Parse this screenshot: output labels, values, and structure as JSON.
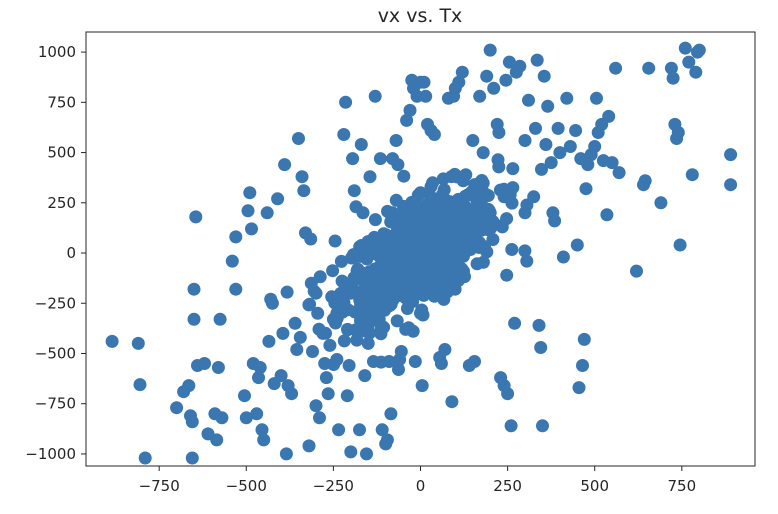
{
  "chart_data": {
    "type": "scatter",
    "title": "vx vs. Tx",
    "xlabel": "",
    "ylabel": "",
    "xlim": [
      -960,
      960
    ],
    "ylim": [
      -1060,
      1100
    ],
    "xticks": [
      -750,
      -500,
      -250,
      0,
      250,
      500,
      750
    ],
    "xtick_labels": [
      "−750",
      "−500",
      "−250",
      "0",
      "250",
      "500",
      "750"
    ],
    "yticks": [
      -1000,
      -750,
      -500,
      -250,
      0,
      250,
      500,
      750,
      1000
    ],
    "ytick_labels": [
      "−1000",
      "−750",
      "−500",
      "−250",
      "0",
      "250",
      "500",
      "750",
      "1000"
    ],
    "grid": false,
    "marker_color": "#3a76b0",
    "points_note": "approximately 1000 points; dense cluster around origin, positively correlated",
    "series": [
      {
        "values": [
          [
            -885,
            -440
          ],
          [
            -810,
            -450
          ],
          [
            -805,
            -655
          ],
          [
            -790,
            -1020
          ],
          [
            -700,
            -770
          ],
          [
            -680,
            -690
          ],
          [
            -665,
            -660
          ],
          [
            -660,
            -810
          ],
          [
            -655,
            -840
          ],
          [
            -655,
            -1020
          ],
          [
            -650,
            -330
          ],
          [
            -650,
            -180
          ],
          [
            -645,
            180
          ],
          [
            -640,
            -560
          ],
          [
            -620,
            -550
          ],
          [
            -610,
            -900
          ],
          [
            -590,
            -800
          ],
          [
            -585,
            -930
          ],
          [
            -580,
            -570
          ],
          [
            -575,
            -330
          ],
          [
            -570,
            -820
          ],
          [
            -540,
            -40
          ],
          [
            -530,
            -180
          ],
          [
            -530,
            80
          ],
          [
            -505,
            -710
          ],
          [
            -500,
            -820
          ],
          [
            -495,
            210
          ],
          [
            -490,
            300
          ],
          [
            -485,
            120
          ],
          [
            -480,
            -550
          ],
          [
            -470,
            -800
          ],
          [
            -465,
            -620
          ],
          [
            -460,
            -570
          ],
          [
            -455,
            -880
          ],
          [
            -450,
            -930
          ],
          [
            -440,
            200
          ],
          [
            -435,
            -440
          ],
          [
            -430,
            -230
          ],
          [
            -425,
            -250
          ],
          [
            -420,
            -650
          ],
          [
            -410,
            270
          ],
          [
            -400,
            -610
          ],
          [
            -395,
            -400
          ],
          [
            -390,
            440
          ],
          [
            -385,
            -1000
          ],
          [
            -380,
            -660
          ],
          [
            -370,
            -700
          ],
          [
            -360,
            -350
          ],
          [
            -355,
            -480
          ],
          [
            -350,
            570
          ],
          [
            -345,
            -420
          ],
          [
            -340,
            380
          ],
          [
            -335,
            310
          ],
          [
            -330,
            100
          ],
          [
            -320,
            -960
          ],
          [
            -315,
            70
          ],
          [
            -310,
            -490
          ],
          [
            -305,
            -190
          ],
          [
            -300,
            -760
          ],
          [
            -295,
            -300
          ],
          [
            -290,
            -820
          ],
          [
            -280,
            -400
          ],
          [
            -275,
            -550
          ],
          [
            -270,
            -620
          ],
          [
            -265,
            -700
          ],
          [
            -260,
            -460
          ],
          [
            -250,
            -330
          ],
          [
            -245,
            60
          ],
          [
            -240,
            -530
          ],
          [
            -235,
            -880
          ],
          [
            -230,
            -240
          ],
          [
            -225,
            -140
          ],
          [
            -220,
            590
          ],
          [
            -215,
            750
          ],
          [
            -210,
            -710
          ],
          [
            -205,
            -560
          ],
          [
            -200,
            -990
          ],
          [
            -195,
            470
          ],
          [
            -190,
            310
          ],
          [
            -185,
            230
          ],
          [
            -180,
            -380
          ],
          [
            -175,
            -880
          ],
          [
            -170,
            540
          ],
          [
            -165,
            200
          ],
          [
            -160,
            -610
          ],
          [
            -155,
            -1000
          ],
          [
            -150,
            -450
          ],
          [
            -145,
            380
          ],
          [
            -140,
            -240
          ],
          [
            -135,
            -540
          ],
          [
            -130,
            780
          ],
          [
            -125,
            -300
          ],
          [
            -120,
            -90
          ],
          [
            -115,
            470
          ],
          [
            -110,
            -880
          ],
          [
            -100,
            -950
          ],
          [
            -95,
            -930
          ],
          [
            -90,
            -540
          ],
          [
            -85,
            -800
          ],
          [
            -80,
            470
          ],
          [
            -70,
            560
          ],
          [
            -65,
            440
          ],
          [
            -60,
            -530
          ],
          [
            -55,
            -490
          ],
          [
            -50,
            -90
          ],
          [
            -40,
            660
          ],
          [
            -30,
            710
          ],
          [
            -25,
            860
          ],
          [
            -20,
            820
          ],
          [
            -15,
            -540
          ],
          [
            -10,
            780
          ],
          [
            0,
            850
          ],
          [
            5,
            -660
          ],
          [
            10,
            850
          ],
          [
            15,
            780
          ],
          [
            20,
            640
          ],
          [
            30,
            610
          ],
          [
            40,
            590
          ],
          [
            55,
            -520
          ],
          [
            60,
            -550
          ],
          [
            70,
            -480
          ],
          [
            80,
            770
          ],
          [
            90,
            -740
          ],
          [
            95,
            780
          ],
          [
            100,
            820
          ],
          [
            110,
            850
          ],
          [
            120,
            900
          ],
          [
            130,
            390
          ],
          [
            140,
            -560
          ],
          [
            150,
            560
          ],
          [
            155,
            -540
          ],
          [
            160,
            120
          ],
          [
            170,
            780
          ],
          [
            180,
            500
          ],
          [
            190,
            880
          ],
          [
            200,
            1010
          ],
          [
            210,
            820
          ],
          [
            220,
            640
          ],
          [
            225,
            600
          ],
          [
            230,
            -620
          ],
          [
            240,
            -660
          ],
          [
            245,
            860
          ],
          [
            250,
            -700
          ],
          [
            255,
            950
          ],
          [
            260,
            -860
          ],
          [
            265,
            420
          ],
          [
            270,
            -350
          ],
          [
            275,
            900
          ],
          [
            285,
            930
          ],
          [
            300,
            560
          ],
          [
            305,
            -40
          ],
          [
            310,
            760
          ],
          [
            325,
            280
          ],
          [
            330,
            620
          ],
          [
            335,
            960
          ],
          [
            340,
            -360
          ],
          [
            345,
            -470
          ],
          [
            350,
            -860
          ],
          [
            355,
            880
          ],
          [
            360,
            540
          ],
          [
            365,
            730
          ],
          [
            375,
            450
          ],
          [
            380,
            200
          ],
          [
            385,
            160
          ],
          [
            395,
            620
          ],
          [
            400,
            500
          ],
          [
            410,
            -20
          ],
          [
            420,
            770
          ],
          [
            430,
            530
          ],
          [
            445,
            610
          ],
          [
            450,
            40
          ],
          [
            455,
            -670
          ],
          [
            460,
            470
          ],
          [
            465,
            -560
          ],
          [
            470,
            -430
          ],
          [
            475,
            320
          ],
          [
            480,
            440
          ],
          [
            490,
            490
          ],
          [
            500,
            530
          ],
          [
            505,
            770
          ],
          [
            510,
            600
          ],
          [
            520,
            640
          ],
          [
            525,
            460
          ],
          [
            535,
            190
          ],
          [
            540,
            680
          ],
          [
            550,
            450
          ],
          [
            560,
            920
          ],
          [
            570,
            400
          ],
          [
            620,
            -90
          ],
          [
            640,
            340
          ],
          [
            645,
            360
          ],
          [
            655,
            920
          ],
          [
            690,
            250
          ],
          [
            720,
            920
          ],
          [
            725,
            870
          ],
          [
            730,
            640
          ],
          [
            735,
            570
          ],
          [
            740,
            600
          ],
          [
            745,
            40
          ],
          [
            760,
            1020
          ],
          [
            770,
            950
          ],
          [
            780,
            390
          ],
          [
            790,
            900
          ],
          [
            795,
            1000
          ],
          [
            800,
            1010
          ],
          [
            890,
            490
          ],
          [
            890,
            340
          ],
          [
            -20,
            100
          ],
          [
            10,
            -50
          ],
          [
            -60,
            50
          ],
          [
            70,
            150
          ],
          [
            -100,
            -100
          ],
          [
            120,
            80
          ],
          [
            50,
            250
          ],
          [
            -150,
            0
          ],
          [
            200,
            200
          ],
          [
            -200,
            -200
          ],
          [
            0,
            0
          ],
          [
            100,
            -100
          ],
          [
            -80,
            200
          ],
          [
            150,
            300
          ],
          [
            -120,
            -250
          ],
          [
            30,
            -180
          ],
          [
            -30,
            180
          ],
          [
            80,
            40
          ],
          [
            -40,
            -40
          ],
          [
            180,
            120
          ],
          [
            -180,
            -80
          ],
          [
            60,
            -20
          ],
          [
            -60,
            -150
          ],
          [
            240,
            280
          ],
          [
            -240,
            -300
          ],
          [
            0,
            300
          ],
          [
            0,
            -300
          ],
          [
            300,
            200
          ],
          [
            -300,
            -200
          ],
          [
            110,
            210
          ]
        ]
      }
    ]
  }
}
